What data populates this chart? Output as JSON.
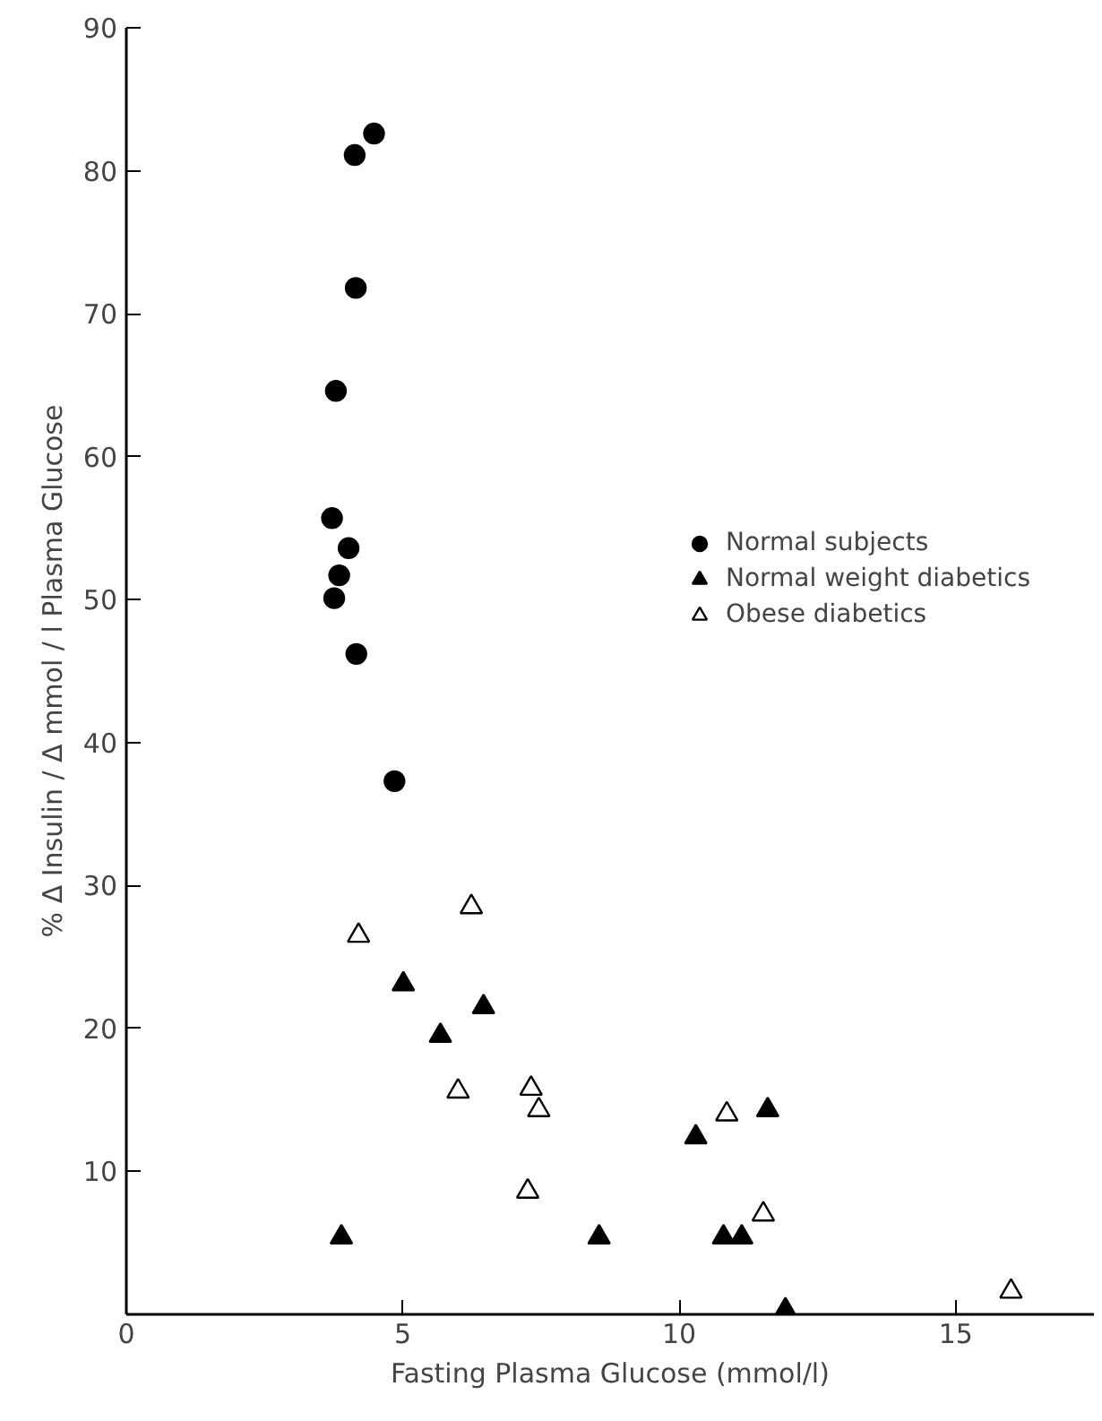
{
  "chart_data": {
    "type": "scatter",
    "xlabel": "Fasting Plasma Glucose (mmol/l)",
    "ylabel": "% Δ Insulin / Δ mmol / l Plasma Glucose",
    "xlim": [
      0,
      17.5
    ],
    "ylim": [
      0,
      90
    ],
    "xticks": [
      0,
      5,
      10,
      15
    ],
    "yticks": [
      10,
      20,
      30,
      40,
      50,
      60,
      70,
      80,
      90
    ],
    "grid": false,
    "legend": "right",
    "series": [
      {
        "name": "Normal subjects",
        "color": "#000000",
        "marker": "circle",
        "x": [
          4.48,
          4.13,
          4.15,
          3.79,
          3.72,
          4.02,
          3.85,
          3.76,
          4.16,
          4.85
        ],
        "values": [
          82.6,
          81.1,
          71.8,
          64.6,
          55.7,
          53.6,
          51.7,
          50.1,
          46.2,
          37.3
        ]
      },
      {
        "name": "Normal weight diabetics",
        "color": "#000000",
        "marker": "triangle",
        "x": [
          3.89,
          5.01,
          5.68,
          6.46,
          8.55,
          10.3,
          10.8,
          11.13,
          11.6,
          11.92
        ],
        "values": [
          5.4,
          23.1,
          19.5,
          21.5,
          5.4,
          12.4,
          5.4,
          5.4,
          14.3,
          0.3
        ]
      },
      {
        "name": "Obese diabetics",
        "color": "#ffffff",
        "marker": "triangle",
        "x": [
          4.2,
          6.24,
          6.0,
          7.32,
          7.46,
          7.26,
          10.86,
          11.52,
          16.0
        ],
        "values": [
          26.5,
          28.5,
          15.6,
          15.8,
          14.3,
          8.6,
          14.0,
          7.0,
          1.6
        ]
      }
    ]
  }
}
